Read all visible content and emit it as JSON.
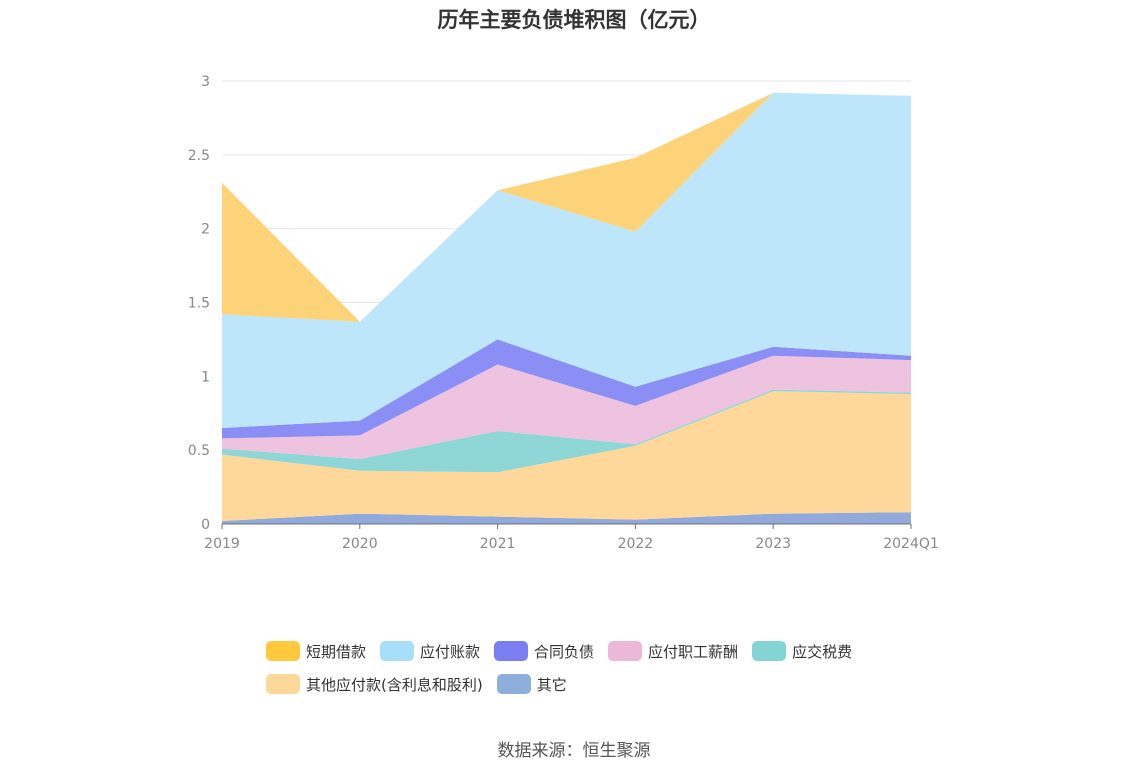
{
  "title": "历年主要负债堆积图（亿元）",
  "source": "数据来源：恒生聚源",
  "chart_data": {
    "type": "area",
    "stacked": true,
    "title": "历年主要负债堆积图（亿元）",
    "xlabel": "",
    "ylabel": "",
    "categories": [
      "2019",
      "2020",
      "2021",
      "2022",
      "2023",
      "2024Q1"
    ],
    "ylim": [
      0,
      3
    ],
    "yticks": [
      "0",
      "0.5",
      "1",
      "1.5",
      "2",
      "2.5",
      "3"
    ],
    "grid": true,
    "legend_position": "bottom",
    "series": [
      {
        "name": "其它",
        "color": "#91aadb",
        "values": [
          0.02,
          0.07,
          0.05,
          0.03,
          0.07,
          0.08
        ]
      },
      {
        "name": "其他应付款(含利息和股利)",
        "color": "#fdd89a",
        "values": [
          0.45,
          0.29,
          0.3,
          0.5,
          0.83,
          0.8
        ]
      },
      {
        "name": "应交税费",
        "color": "#8fd6d6",
        "values": [
          0.04,
          0.08,
          0.28,
          0.01,
          0.01,
          0.01
        ]
      },
      {
        "name": "应付职工薪酬",
        "color": "#eec3df",
        "values": [
          0.07,
          0.16,
          0.45,
          0.26,
          0.23,
          0.22
        ]
      },
      {
        "name": "合同负债",
        "color": "#8a8ef5",
        "values": [
          0.07,
          0.1,
          0.17,
          0.13,
          0.06,
          0.03
        ]
      },
      {
        "name": "应付账款",
        "color": "#bde6fa",
        "values": [
          0.77,
          0.67,
          1.01,
          1.05,
          1.72,
          1.76
        ]
      },
      {
        "name": "短期借款",
        "color": "#fdd37a",
        "values": [
          0.89,
          0.0,
          0.0,
          0.5,
          0.0,
          0.0
        ]
      }
    ],
    "legend_order": [
      "短期借款",
      "应付账款",
      "合同负债",
      "应付职工薪酬",
      "应交税费",
      "其他应付款(含利息和股利)",
      "其它"
    ],
    "legend_colors": {
      "短期借款": "#ffc83d",
      "应付账款": "#a7dff8",
      "合同负债": "#7a7ef0",
      "应付职工薪酬": "#ebb8d8",
      "应交税费": "#83d4d4",
      "其他应付款(含利息和股利)": "#fdd89a",
      "其它": "#8eaedc"
    }
  }
}
